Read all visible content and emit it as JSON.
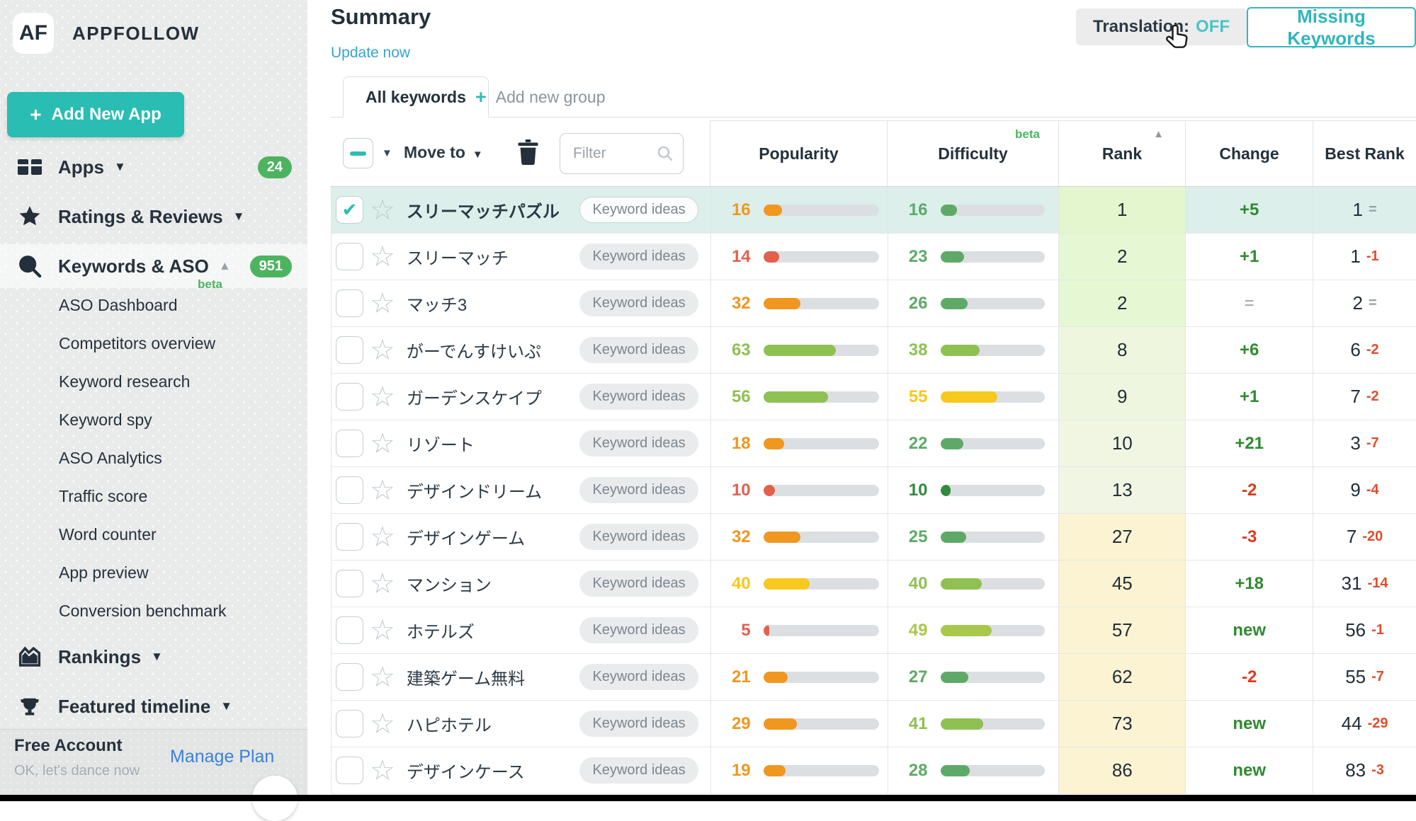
{
  "sidebar": {
    "logo_mark": "AF",
    "brand": "APPFOLLOW",
    "add_app_label": "Add New App",
    "nav": [
      {
        "label": "Apps",
        "badge": "24"
      },
      {
        "label": "Ratings & Reviews"
      },
      {
        "label": "Keywords & ASO",
        "badge": "951"
      }
    ],
    "sub_nav": [
      {
        "label": "ASO Dashboard",
        "beta": "beta"
      },
      {
        "label": "Competitors overview"
      },
      {
        "label": "Keyword research"
      },
      {
        "label": "Keyword spy"
      },
      {
        "label": "ASO Analytics"
      },
      {
        "label": "Traffic score"
      },
      {
        "label": "Word counter"
      },
      {
        "label": "App preview"
      },
      {
        "label": "Conversion benchmark"
      }
    ],
    "nav_bottom": [
      {
        "label": "Rankings"
      },
      {
        "label": "Featured timeline"
      }
    ],
    "footer": {
      "plan": "Free Account",
      "subtitle": "OK, let's dance now",
      "action": "Manage Plan"
    }
  },
  "header": {
    "title": "Summary",
    "update_link": "Update now",
    "translation_label": "Translation:",
    "translation_state": "OFF",
    "missing_keywords_label": "Missing Keywords"
  },
  "tabs": {
    "active": "All keywords",
    "add_group": "Add new group",
    "plus": "+"
  },
  "toolbar": {
    "move_to": "Move to",
    "filter_placeholder": "Filter"
  },
  "table": {
    "columns": {
      "popularity": "Popularity",
      "difficulty": "Difficulty",
      "difficulty_beta": "beta",
      "rank": "Rank",
      "change": "Change",
      "best_rank": "Best Rank"
    },
    "tag_label": "Keyword ideas",
    "rows": [
      {
        "keyword": "スリーマッチパズル",
        "selected": true,
        "pop": 16,
        "pop_color": "orange",
        "diff": 16,
        "diff_color": "green",
        "rank": "1",
        "rank_bg": "#e3f6cd",
        "change": "+5",
        "change_type": "up",
        "best": "1",
        "best_delta": "=",
        "best_delta_type": "same"
      },
      {
        "keyword": "スリーマッチ",
        "selected": false,
        "pop": 14,
        "pop_color": "red",
        "diff": 23,
        "diff_color": "green",
        "rank": "2",
        "rank_bg": "#e6f7d3",
        "change": "+1",
        "change_type": "up",
        "best": "1",
        "best_delta": "-1",
        "best_delta_type": "down"
      },
      {
        "keyword": "マッチ3",
        "selected": false,
        "pop": 32,
        "pop_color": "orange",
        "diff": 26,
        "diff_color": "green",
        "rank": "2",
        "rank_bg": "#e6f7d3",
        "change": "=",
        "change_type": "same",
        "best": "2",
        "best_delta": "=",
        "best_delta_type": "same"
      },
      {
        "keyword": "がーでんすけいぷ",
        "selected": false,
        "pop": 63,
        "pop_color": "lgreen",
        "diff": 38,
        "diff_color": "lgreen",
        "rank": "8",
        "rank_bg": "#eef6de",
        "change": "+6",
        "change_type": "up",
        "best": "6",
        "best_delta": "-2",
        "best_delta_type": "down"
      },
      {
        "keyword": "ガーデンスケイプ",
        "selected": false,
        "pop": 56,
        "pop_color": "lgreen",
        "diff": 55,
        "diff_color": "yellow",
        "rank": "9",
        "rank_bg": "#eff6e0",
        "change": "+1",
        "change_type": "up",
        "best": "7",
        "best_delta": "-2",
        "best_delta_type": "down"
      },
      {
        "keyword": "リゾート",
        "selected": false,
        "pop": 18,
        "pop_color": "orange",
        "diff": 22,
        "diff_color": "green",
        "rank": "10",
        "rank_bg": "#f0f6e2",
        "change": "+21",
        "change_type": "up",
        "best": "3",
        "best_delta": "-7",
        "best_delta_type": "down"
      },
      {
        "keyword": "デザインドリーム",
        "selected": false,
        "pop": 10,
        "pop_color": "red",
        "diff": 10,
        "diff_color": "dgreen",
        "rank": "13",
        "rank_bg": "#f1f6e4",
        "change": "-2",
        "change_type": "down",
        "best": "9",
        "best_delta": "-4",
        "best_delta_type": "down"
      },
      {
        "keyword": "デザインゲーム",
        "selected": false,
        "pop": 32,
        "pop_color": "orange",
        "diff": 25,
        "diff_color": "green",
        "rank": "27",
        "rank_bg": "#fbf3d2",
        "change": "-3",
        "change_type": "down",
        "best": "7",
        "best_delta": "-20",
        "best_delta_type": "down"
      },
      {
        "keyword": "マンション",
        "selected": false,
        "pop": 40,
        "pop_color": "yellow",
        "diff": 40,
        "diff_color": "lgreen",
        "rank": "45",
        "rank_bg": "#fbf3d2",
        "change": "+18",
        "change_type": "up",
        "best": "31",
        "best_delta": "-14",
        "best_delta_type": "down"
      },
      {
        "keyword": "ホテルズ",
        "selected": false,
        "pop": 5,
        "pop_color": "red",
        "diff": 49,
        "diff_color": "ygreen",
        "rank": "57",
        "rank_bg": "#fbf3d2",
        "change": "new",
        "change_type": "new",
        "best": "56",
        "best_delta": "-1",
        "best_delta_type": "down"
      },
      {
        "keyword": "建築ゲーム無料",
        "selected": false,
        "pop": 21,
        "pop_color": "orange",
        "diff": 27,
        "diff_color": "green",
        "rank": "62",
        "rank_bg": "#fbf3d2",
        "change": "-2",
        "change_type": "down",
        "best": "55",
        "best_delta": "-7",
        "best_delta_type": "down"
      },
      {
        "keyword": "ハピホテル",
        "selected": false,
        "pop": 29,
        "pop_color": "orange",
        "diff": 41,
        "diff_color": "lgreen",
        "rank": "73",
        "rank_bg": "#fbf3d2",
        "change": "new",
        "change_type": "new",
        "best": "44",
        "best_delta": "-29",
        "best_delta_type": "down"
      },
      {
        "keyword": "デザインケース",
        "selected": false,
        "pop": 19,
        "pop_color": "orange",
        "diff": 28,
        "diff_color": "green",
        "rank": "86",
        "rank_bg": "#fbf3d2",
        "change": "new",
        "change_type": "new",
        "best": "83",
        "best_delta": "-3",
        "best_delta_type": "down"
      }
    ]
  }
}
